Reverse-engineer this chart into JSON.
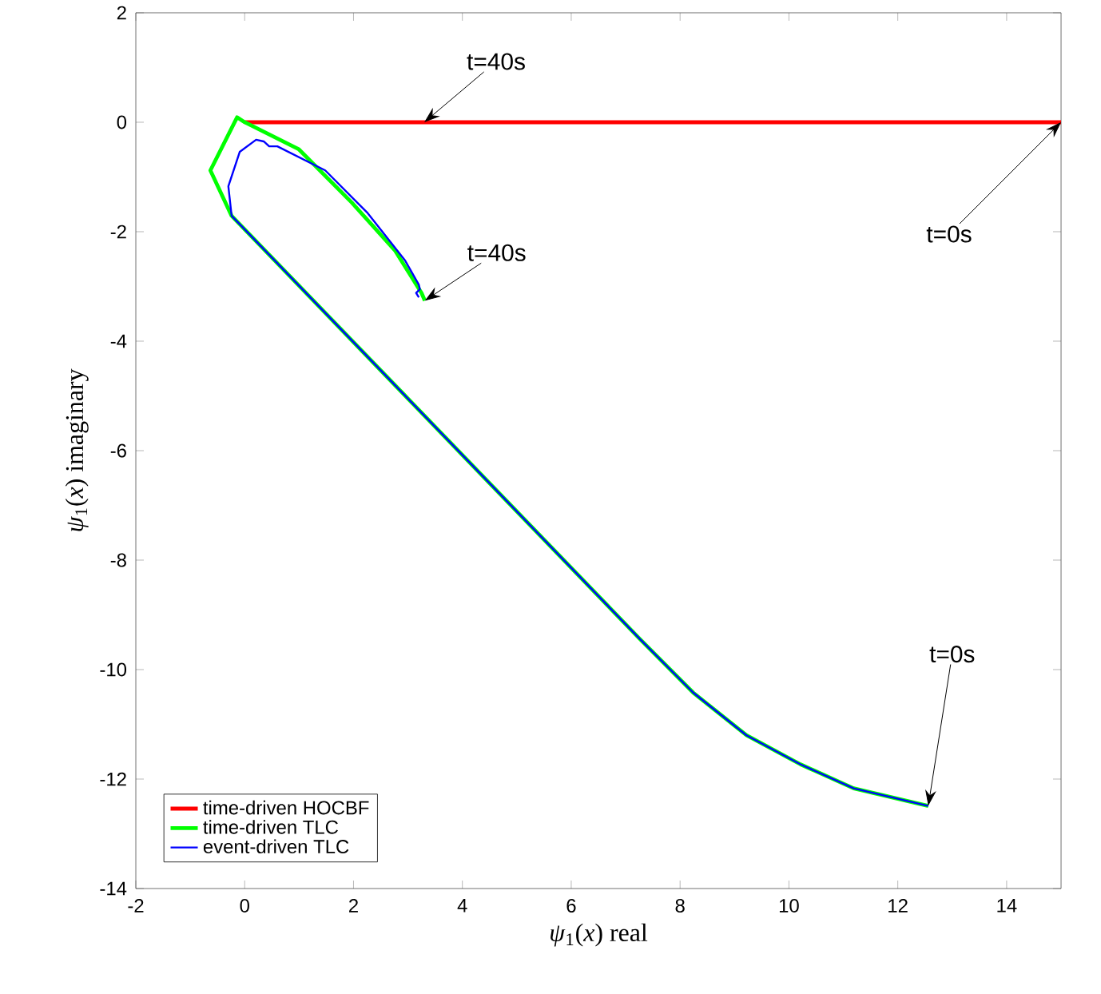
{
  "chart_data": {
    "type": "line",
    "xlabel": "*ψ*$_{1}$(*x*) real",
    "ylabel": "*ψ*$_{1}$(*x*) imaginary",
    "xlim": [
      -2,
      15
    ],
    "ylim": [
      -14,
      2
    ],
    "xticks": [
      -2,
      0,
      2,
      4,
      6,
      8,
      10,
      12,
      14
    ],
    "yticks": [
      2,
      0,
      -2,
      -4,
      -6,
      -8,
      -10,
      -12,
      -14
    ],
    "grid": false,
    "legend": "bottom left",
    "marker": "none",
    "line_style": "solid",
    "series": [
      {
        "name": "time-driven HOCBF",
        "color": "#ff0000",
        "x": [
          15,
          0
        ],
        "values": [
          0,
          0
        ]
      },
      {
        "name": "time-driven TLC",
        "color": "#00ff00",
        "x": [
          12.56,
          11.19,
          10.21,
          9.22,
          8.24,
          7.26,
          -0.24,
          -0.63,
          -0.14,
          0,
          0.99,
          1.97,
          2.76,
          3.25,
          3.31
        ],
        "values": [
          -12.49,
          -12.17,
          -11.73,
          -11.2,
          -10.42,
          -9.44,
          -1.71,
          -0.88,
          0.09,
          0,
          -0.49,
          -1.47,
          -2.34,
          -3.12,
          -3.26
        ]
      },
      {
        "name": "event-driven TLC",
        "color": "#0000ff",
        "x": [
          12.56,
          11.19,
          10.21,
          9.22,
          8.24,
          7.26,
          -0.24,
          -0.3,
          -0.09,
          0.21,
          0.35,
          0.45,
          0.6,
          1.48,
          2.26,
          2.95,
          3.2,
          3.22,
          3.15,
          3.2
        ],
        "values": [
          -12.49,
          -12.17,
          -11.73,
          -11.2,
          -10.42,
          -9.44,
          -1.71,
          -1.17,
          -0.54,
          -0.32,
          -0.35,
          -0.44,
          -0.44,
          -0.88,
          -1.66,
          -2.53,
          -2.97,
          -3.05,
          -3.12,
          -3.2
        ]
      }
    ],
    "annotations": [
      {
        "text": "t=40s",
        "x": 3.3,
        "y": 0
      },
      {
        "text": "t=40s",
        "x": 3.31,
        "y": -3.26
      },
      {
        "text": "t=0s",
        "x": 15,
        "y": 0
      },
      {
        "text": "t=0s",
        "x": 12.56,
        "y": -12.49
      }
    ]
  }
}
